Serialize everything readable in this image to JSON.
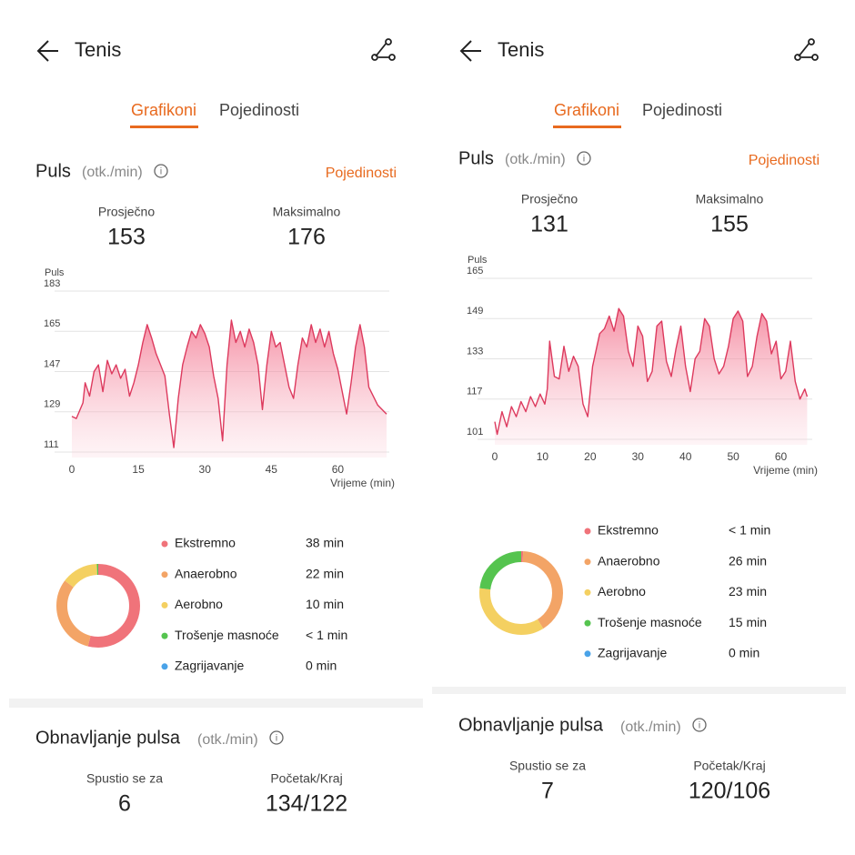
{
  "screens": [
    {
      "title": "Tenis",
      "tabs": [
        "Grafikoni",
        "Pojedinosti"
      ],
      "heart_rate": {
        "title": "Puls",
        "unit": "(otk./min)",
        "link": "Pojedinosti",
        "stats": [
          {
            "label": "Prosječno",
            "value": 153
          },
          {
            "label": "Maksimalno",
            "value": 176
          }
        ],
        "chart": {
          "type": "line",
          "y_label": "Puls",
          "x_label": "Vrijeme (min)",
          "color": "#dd3a5e",
          "x": [
            0,
            1,
            2.5,
            3,
            4,
            5,
            6,
            7,
            8,
            9,
            10,
            11,
            12,
            13,
            14,
            15,
            16,
            17,
            18,
            19,
            20,
            21,
            22,
            23,
            24,
            25,
            26,
            27,
            28,
            29,
            30,
            31,
            32,
            33,
            34,
            35,
            36,
            37,
            38,
            39,
            40,
            41,
            42,
            43,
            44,
            45,
            46,
            47,
            48,
            49,
            50,
            51,
            52,
            53,
            54,
            55,
            56,
            57,
            58,
            59,
            60,
            62,
            63,
            64,
            65,
            66,
            67,
            69,
            71
          ],
          "values": [
            127,
            126,
            133,
            142,
            136,
            147,
            150,
            138,
            152,
            146,
            150,
            144,
            148,
            136,
            142,
            150,
            160,
            168,
            162,
            155,
            150,
            145,
            128,
            113,
            135,
            150,
            158,
            165,
            162,
            168,
            164,
            158,
            145,
            135,
            116,
            150,
            170,
            160,
            165,
            158,
            166,
            160,
            150,
            130,
            150,
            165,
            158,
            160,
            150,
            140,
            135,
            150,
            162,
            158,
            168,
            160,
            166,
            158,
            165,
            155,
            148,
            128,
            142,
            158,
            168,
            158,
            140,
            132,
            128
          ],
          "xlim": [
            0,
            71
          ],
          "ylim": [
            111,
            183
          ],
          "xticks": [
            0,
            15,
            30,
            45,
            60
          ],
          "yticks": [
            111,
            129,
            147,
            165,
            183
          ]
        }
      },
      "zones": {
        "type": "donut",
        "categories": [
          "Ekstremno",
          "Anaerobno",
          "Aerobno",
          "Trošenje masnoće",
          "Zagrijavanje"
        ],
        "colors": [
          "#f0737a",
          "#f3a466",
          "#f4d061",
          "#55c44f",
          "#4aa3e8"
        ],
        "values": [
          38,
          22,
          10,
          0.5,
          0
        ],
        "value_labels": [
          "38 min",
          "22 min",
          "10 min",
          "< 1 min",
          "0 min"
        ]
      },
      "recovery": {
        "title": "Obnavljanje pulsa",
        "unit": "(otk./min)",
        "stats": [
          {
            "label": "Spustio se za",
            "value": 6
          },
          {
            "label": "Početak/Kraj",
            "value": "134/122"
          }
        ]
      }
    },
    {
      "title": "Tenis",
      "tabs": [
        "Grafikoni",
        "Pojedinosti"
      ],
      "heart_rate": {
        "title": "Puls",
        "unit": "(otk./min)",
        "link": "Pojedinosti",
        "stats": [
          {
            "label": "Prosječno",
            "value": 131
          },
          {
            "label": "Maksimalno",
            "value": 155
          }
        ],
        "chart": {
          "type": "line",
          "y_label": "Puls",
          "x_label": "Vrijeme (min)",
          "color": "#dd3a5e",
          "x": [
            0,
            0.5,
            1.5,
            2.5,
            3.5,
            4.5,
            5.5,
            6.5,
            7.5,
            8.5,
            9.5,
            10.5,
            11,
            11.5,
            12.5,
            13.5,
            14.5,
            15.5,
            16.5,
            17.5,
            18.5,
            19.5,
            20.5,
            22,
            23,
            24,
            25,
            26,
            27,
            28,
            29,
            30,
            31,
            32,
            33,
            34,
            35,
            36,
            37,
            38,
            39,
            40,
            41,
            42,
            43,
            44,
            45,
            46,
            47,
            48,
            49,
            50,
            51,
            52,
            53,
            54,
            55,
            56,
            57,
            58,
            59,
            60,
            61,
            62,
            63,
            64,
            65,
            65.5
          ],
          "values": [
            108,
            103,
            112,
            106,
            114,
            110,
            116,
            112,
            118,
            114,
            119,
            115,
            121,
            140,
            126,
            125,
            138,
            128,
            134,
            130,
            115,
            110,
            130,
            143,
            145,
            150,
            144,
            153,
            150,
            136,
            130,
            146,
            142,
            124,
            128,
            146,
            148,
            132,
            126,
            137,
            146,
            130,
            120,
            133,
            136,
            149,
            146,
            133,
            127,
            130,
            138,
            149,
            152,
            148,
            126,
            130,
            142,
            151,
            148,
            135,
            140,
            125,
            128,
            140,
            124,
            117,
            121,
            118
          ],
          "xlim": [
            0,
            66
          ],
          "ylim": [
            101,
            165
          ],
          "xticks": [
            0,
            10,
            20,
            30,
            40,
            50,
            60
          ],
          "yticks": [
            101,
            117,
            133,
            149,
            165
          ]
        }
      },
      "zones": {
        "type": "donut",
        "categories": [
          "Ekstremno",
          "Anaerobno",
          "Aerobno",
          "Trošenje masnoće",
          "Zagrijavanje"
        ],
        "colors": [
          "#f0737a",
          "#f3a466",
          "#f4d061",
          "#55c44f",
          "#4aa3e8"
        ],
        "values": [
          0.5,
          26,
          23,
          15,
          0
        ],
        "value_labels": [
          "< 1 min",
          "26 min",
          "23 min",
          "15 min",
          "0 min"
        ]
      },
      "recovery": {
        "title": "Obnavljanje pulsa",
        "unit": "(otk./min)",
        "stats": [
          {
            "label": "Spustio se za",
            "value": 7
          },
          {
            "label": "Početak/Kraj",
            "value": "120/106"
          }
        ]
      }
    }
  ]
}
